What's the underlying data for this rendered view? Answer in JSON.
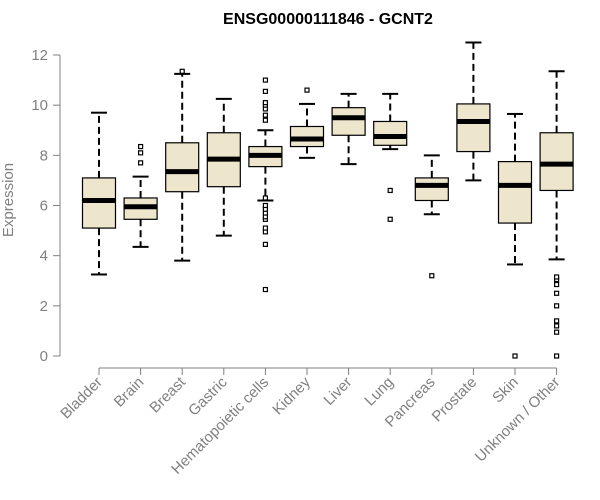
{
  "colors": {
    "box_fill": "#ede6cc",
    "box_stroke": "#000000",
    "axis": "#808080",
    "median": "#000000"
  },
  "chart_data": {
    "type": "boxplot",
    "title": "ENSG00000111846 - GCNT2",
    "xlabel": "",
    "ylabel": "Expression",
    "ylim": [
      0,
      12
    ],
    "yticks": [
      0,
      2,
      4,
      6,
      8,
      10,
      12
    ],
    "categories": [
      "Bladder",
      "Brain",
      "Breast",
      "Gastric",
      "Hematopoietic cells",
      "Kidney",
      "Liver",
      "Lung",
      "Pancreas",
      "Prostate",
      "Skin",
      "Unknown / Other"
    ],
    "boxes": [
      {
        "label": "Bladder",
        "whisker_low": 3.25,
        "q1": 5.1,
        "median": 6.2,
        "q3": 7.1,
        "whisker_high": 9.7,
        "outliers": []
      },
      {
        "label": "Brain",
        "whisker_low": 4.35,
        "q1": 5.45,
        "median": 5.95,
        "q3": 6.3,
        "whisker_high": 7.15,
        "outliers": [
          7.7,
          8.1,
          8.35
        ]
      },
      {
        "label": "Breast",
        "whisker_low": 3.8,
        "q1": 6.55,
        "median": 7.35,
        "q3": 8.5,
        "whisker_high": 11.25,
        "outliers": [
          11.35
        ]
      },
      {
        "label": "Gastric",
        "whisker_low": 4.8,
        "q1": 6.75,
        "median": 7.85,
        "q3": 8.9,
        "whisker_high": 10.25,
        "outliers": []
      },
      {
        "label": "Hematopoietic cells",
        "whisker_low": 6.2,
        "q1": 7.55,
        "median": 8.0,
        "q3": 8.35,
        "whisker_high": 9.0,
        "outliers": [
          2.65,
          4.45,
          4.95,
          5.1,
          5.45,
          5.55,
          5.7,
          5.85,
          6.0,
          6.3,
          9.4,
          9.6,
          9.85,
          10.0,
          10.1,
          10.55,
          11.0
        ]
      },
      {
        "label": "Kidney",
        "whisker_low": 7.9,
        "q1": 8.35,
        "median": 8.65,
        "q3": 9.15,
        "whisker_high": 10.05,
        "outliers": [
          10.6
        ]
      },
      {
        "label": "Liver",
        "whisker_low": 7.65,
        "q1": 8.8,
        "median": 9.5,
        "q3": 9.9,
        "whisker_high": 10.45,
        "outliers": []
      },
      {
        "label": "Lung",
        "whisker_low": 8.25,
        "q1": 8.4,
        "median": 8.75,
        "q3": 9.35,
        "whisker_high": 10.45,
        "outliers": [
          5.45,
          6.6
        ]
      },
      {
        "label": "Pancreas",
        "whisker_low": 5.65,
        "q1": 6.2,
        "median": 6.8,
        "q3": 7.1,
        "whisker_high": 8.0,
        "outliers": [
          3.2
        ]
      },
      {
        "label": "Prostate",
        "whisker_low": 7.0,
        "q1": 8.15,
        "median": 9.35,
        "q3": 10.05,
        "whisker_high": 12.5,
        "outliers": []
      },
      {
        "label": "Skin",
        "whisker_low": 3.65,
        "q1": 5.3,
        "median": 6.8,
        "q3": 7.75,
        "whisker_high": 9.65,
        "outliers": [
          0.0
        ]
      },
      {
        "label": "Unknown / Other",
        "whisker_low": 3.85,
        "q1": 6.6,
        "median": 7.65,
        "q3": 8.9,
        "whisker_high": 11.35,
        "outliers": [
          0.0,
          0.95,
          1.2,
          1.4,
          2.0,
          2.5,
          2.85,
          3.05,
          3.15
        ]
      }
    ]
  }
}
